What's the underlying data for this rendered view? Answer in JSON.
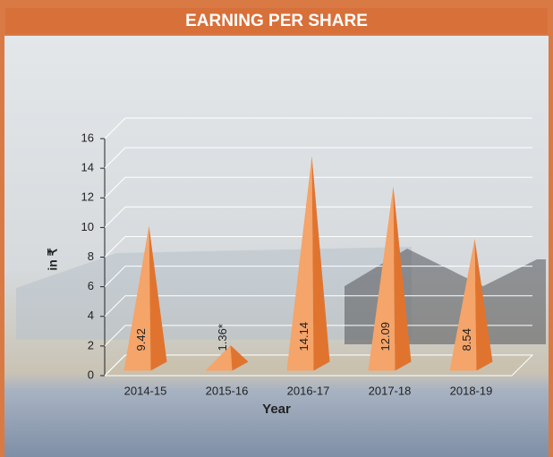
{
  "chart_data": {
    "type": "pyramid",
    "title": "EARNING PER SHARE",
    "categories": [
      "2014-15",
      "2015-16",
      "2016-17",
      "2017-18",
      "2018-19"
    ],
    "values": [
      9.42,
      1.36,
      14.14,
      12.09,
      8.54
    ],
    "value_labels": [
      "9.42",
      "1.36*",
      "14.14",
      "12.09",
      "8.54"
    ],
    "color": "#f5a46a",
    "x_label": "Year",
    "y_label": "in ₹",
    "ylim": [
      0,
      16
    ],
    "yticks": [
      0,
      2,
      4,
      6,
      8,
      10,
      12,
      14,
      16
    ],
    "grid": true
  }
}
